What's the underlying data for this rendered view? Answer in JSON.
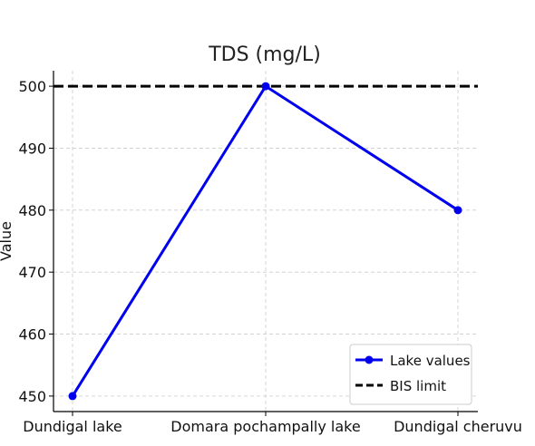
{
  "chart_data": {
    "type": "line",
    "title": "TDS (mg/L)",
    "xlabel": "",
    "ylabel": "Value",
    "categories": [
      "Dundigal lake",
      "Domara pochampally lake",
      "Dundigal cheruvu"
    ],
    "series": [
      {
        "name": "Lake values",
        "values": [
          450,
          500,
          480
        ],
        "color": "#0000ee",
        "marker": "circle"
      }
    ],
    "reference_lines": [
      {
        "name": "BIS limit",
        "value": 500,
        "color": "#000000",
        "style": "dashed"
      }
    ],
    "yticks": [
      450,
      460,
      470,
      480,
      490,
      500
    ],
    "ylim": [
      447.5,
      502.5
    ],
    "grid": true,
    "legend_position": "bottom-right"
  }
}
